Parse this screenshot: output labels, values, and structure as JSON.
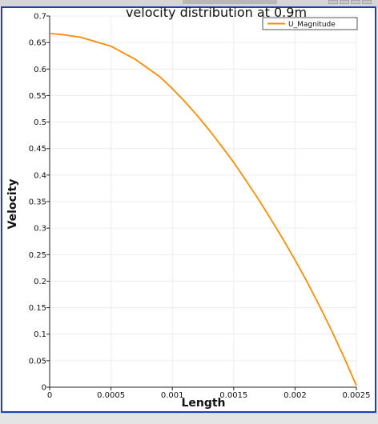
{
  "chart_data": {
    "type": "line",
    "title": "velocity distribution at 0.9m",
    "xlabel": "Length",
    "ylabel": "Velocity",
    "xlim": [
      0,
      0.0025
    ],
    "ylim": [
      0,
      0.7
    ],
    "xticks": [
      "0",
      "0.0005",
      "0.001",
      "0.0015",
      "0.002",
      "0.0025"
    ],
    "yticks": [
      "0",
      "0.05",
      "0.1",
      "0.15",
      "0.2",
      "0.25",
      "0.3",
      "0.35",
      "0.4",
      "0.45",
      "0.5",
      "0.55",
      "0.6",
      "0.65",
      "0.7"
    ],
    "grid": true,
    "legend_position": "top-right",
    "series": [
      {
        "name": "U_Magnitude",
        "color": "#ff8c00",
        "x": [
          0,
          0.0001,
          0.00025,
          0.0005,
          0.0007,
          0.0009,
          0.001,
          0.0011,
          0.0012,
          0.0013,
          0.0014,
          0.0015,
          0.0016,
          0.0017,
          0.0018,
          0.0019,
          0.002,
          0.0021,
          0.0022,
          0.0023,
          0.0024,
          0.0025
        ],
        "y": [
          0.667,
          0.665,
          0.66,
          0.643,
          0.618,
          0.585,
          0.563,
          0.539,
          0.513,
          0.485,
          0.455,
          0.424,
          0.39,
          0.355,
          0.318,
          0.28,
          0.24,
          0.198,
          0.153,
          0.106,
          0.056,
          0.003
        ]
      }
    ]
  }
}
